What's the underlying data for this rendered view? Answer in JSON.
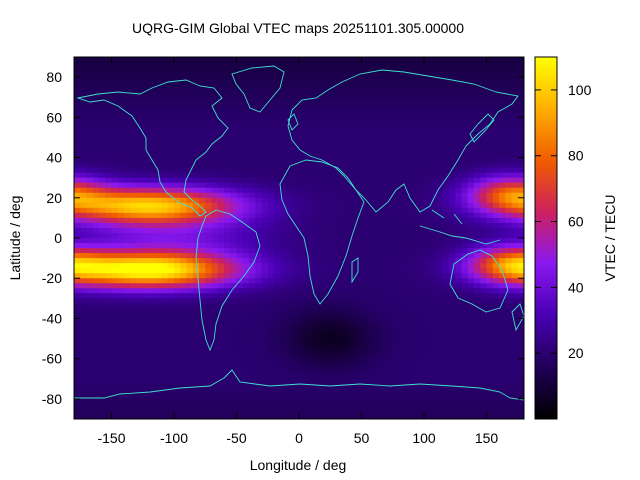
{
  "chart_data": {
    "type": "heatmap",
    "title": "UQRG-GIM Global VTEC maps 20251101.305.00000",
    "xlabel": "Longitude / deg",
    "ylabel": "Latitude / deg",
    "colorbar_label": "VTEC / TECU",
    "xlim": [
      -180,
      180
    ],
    "ylim": [
      -90,
      90
    ],
    "x_ticks": [
      -150,
      -100,
      -50,
      0,
      50,
      100,
      150
    ],
    "y_ticks": [
      -80,
      -60,
      -40,
      -20,
      0,
      20,
      40,
      60,
      80
    ],
    "colorbar_range": [
      0,
      110
    ],
    "colorbar_ticks": [
      20,
      40,
      60,
      80,
      100
    ],
    "colormap": [
      "#000000",
      "#1f0056",
      "#4a00b5",
      "#8a18f0",
      "#cc2060",
      "#ef5a00",
      "#ffb000",
      "#ffff00"
    ],
    "grid_resolution": {
      "lon_step": 5,
      "lat_step": 2.5
    },
    "features": {
      "background_vtec": 20,
      "night_low": {
        "lon": 25,
        "lat": -50,
        "lon_sigma": 35,
        "lat_sigma": 14,
        "vtec_drop": 14
      },
      "polar_low_north": {
        "vtec_drop": 8
      },
      "equatorial_anomaly_crests": [
        {
          "lat": 16,
          "lon_center": -120,
          "lon_sigma": 70,
          "peak_vtec": 100
        },
        {
          "lat": -16,
          "lon_center": -120,
          "lon_sigma": 70,
          "peak_vtec": 112
        },
        {
          "lat": 22,
          "lon_center": 170,
          "lon_sigma": 35,
          "peak_vtec": 70
        },
        {
          "lat": -13,
          "lon_center": 170,
          "lon_sigma": 35,
          "peak_vtec": 70
        }
      ]
    },
    "coastline_color": "#40e0d0"
  }
}
